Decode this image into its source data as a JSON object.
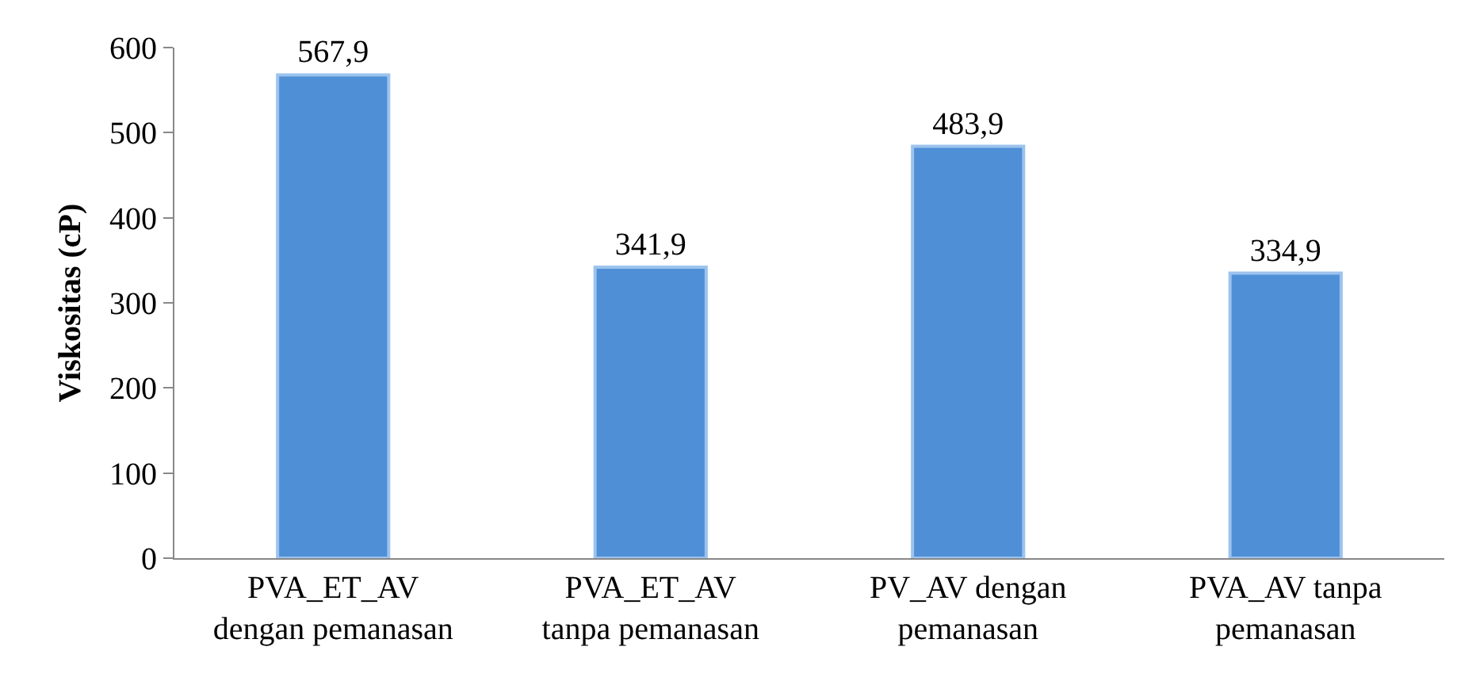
{
  "chart_data": {
    "type": "bar",
    "ylabel": "Viskositas (cP)",
    "categories": [
      "PVA_ET_AV dengan pemanasan",
      "PVA_ET_AV tanpa pemanasan",
      "PV_AV dengan pemanasan",
      "PVA_AV tanpa pemanasan"
    ],
    "values": [
      567.9,
      341.9,
      483.9,
      334.9
    ],
    "value_labels": [
      "567,9",
      "341,9",
      "483,9",
      "334,9"
    ],
    "color": "#4f8fd6",
    "ylim": [
      0,
      600
    ],
    "yticks": [
      0,
      100,
      200,
      300,
      400,
      500,
      600
    ],
    "grid": false
  }
}
